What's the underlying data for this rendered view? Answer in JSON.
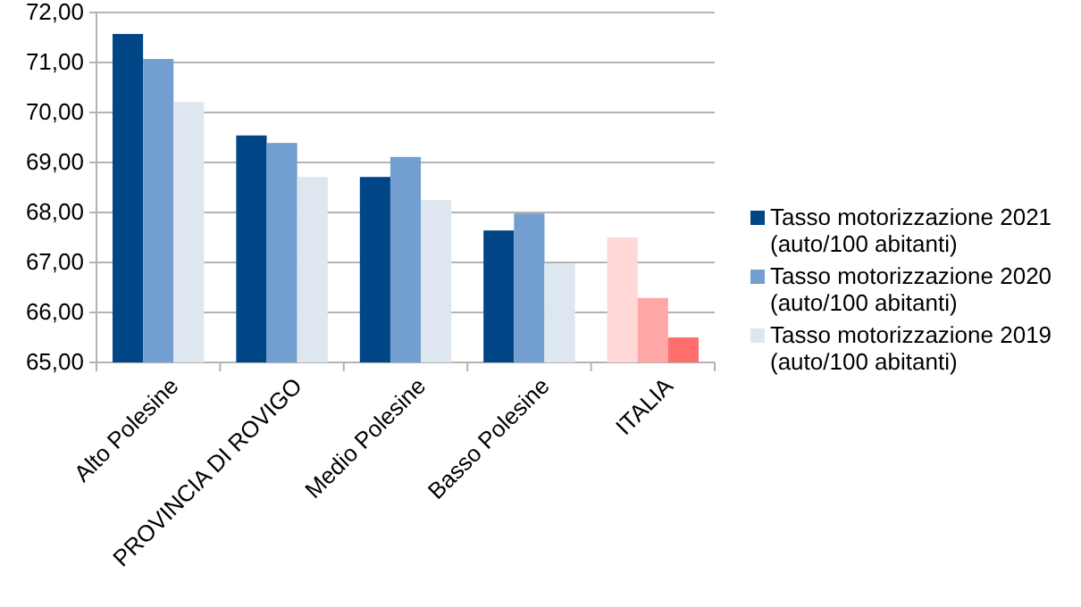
{
  "chart_data": {
    "type": "bar",
    "categories": [
      "Alto Polesine",
      "PROVINCIA DI ROVIGO",
      "Medio Polesine",
      "Basso Polesine",
      "ITALIA"
    ],
    "series": [
      {
        "name": "Tasso motorizzazione 2021 (auto/100 abitanti)",
        "color": "#004586",
        "colors": [
          "#004586",
          "#004586",
          "#004586",
          "#004586",
          "#ffd7d7"
        ],
        "values": [
          71.57,
          69.54,
          68.71,
          67.64,
          67.5
        ]
      },
      {
        "name": "Tasso motorizzazione 2020 (auto/100 abitanti)",
        "color": "#729fcf",
        "colors": [
          "#729fcf",
          "#729fcf",
          "#729fcf",
          "#729fcf",
          "#ffa6a6"
        ],
        "values": [
          71.07,
          69.39,
          69.11,
          67.98,
          66.29
        ]
      },
      {
        "name": "Tasso motorizzazione 2019 (auto/100 abitanti)",
        "color": "#dee6ef",
        "colors": [
          "#dee6ef",
          "#dee6ef",
          "#dee6ef",
          "#dee6ef",
          "#ff6d6d"
        ],
        "values": [
          70.21,
          68.71,
          68.25,
          66.98,
          65.5
        ]
      }
    ],
    "ylim": [
      65,
      72
    ],
    "yticks": [
      {
        "value": 65,
        "label": "65,00"
      },
      {
        "value": 66,
        "label": "66,00"
      },
      {
        "value": 67,
        "label": "67,00"
      },
      {
        "value": 68,
        "label": "68,00"
      },
      {
        "value": 69,
        "label": "69,00"
      },
      {
        "value": 70,
        "label": "70,00"
      },
      {
        "value": 71,
        "label": "71,00"
      },
      {
        "value": 72,
        "label": "72,00"
      }
    ],
    "grid": "y",
    "legend": "right"
  }
}
